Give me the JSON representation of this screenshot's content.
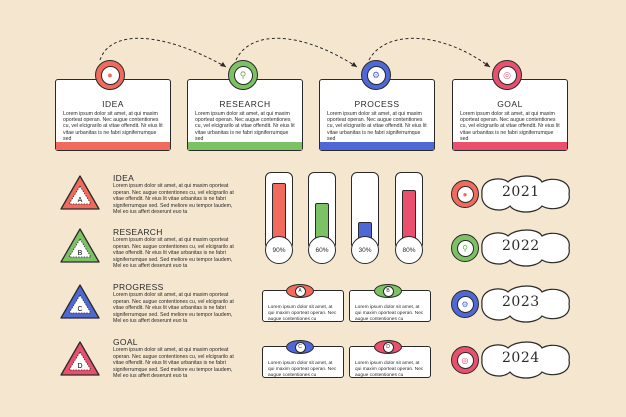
{
  "colors": {
    "red": "#f06a5e",
    "green": "#7cc265",
    "blue": "#4f68d6",
    "pink": "#e9506d",
    "bg": "#f5e6cf"
  },
  "lorem_card": "Lorem ipsum dolor sit amet, at qui maxim oporteat operan. Nec augue contentiones cu, vel elcigrarilo at vitae offendit. Nr eius lit vitae urbanitas is ne fabri signiferrumque sed",
  "top_cards": [
    {
      "title": "IDEA",
      "icon": "lightbulb-icon"
    },
    {
      "title": "RESEARCH",
      "icon": "magnifier-icon"
    },
    {
      "title": "PROCESS",
      "icon": "gear-icon"
    },
    {
      "title": "GOAL",
      "icon": "target-icon"
    }
  ],
  "lorem_list": "Lorem ipsum dolor sit amet, at qui maxim oporteat operan. Nec augue contentiones cu, vel elcigrarilo at vitae offendit. Nr eius lit vitae urbanitas is ne fabri signiferrumque sed. Sed meliore eu tempor laudem, Mel eo ius affert deserunt euo ta",
  "list_items": [
    {
      "letter": "A",
      "title": "IDEA"
    },
    {
      "letter": "B",
      "title": "RESEARCH"
    },
    {
      "letter": "C",
      "title": "PROGRESS"
    },
    {
      "letter": "D",
      "title": "GOAL"
    }
  ],
  "bars": [
    {
      "value": 90,
      "label": "90%"
    },
    {
      "value": 60,
      "label": "60%"
    },
    {
      "value": 30,
      "label": "30%"
    },
    {
      "value": 80,
      "label": "80%"
    }
  ],
  "lorem_small": "Lorem ipsum dolor sit amet, at qui maxim oporteat operan. Nec augue contentiones cu",
  "small_boxes": [
    {
      "letter": "A"
    },
    {
      "letter": "B"
    },
    {
      "letter": "C"
    },
    {
      "letter": "D"
    }
  ],
  "years": [
    {
      "year": "2021",
      "icon": "lightbulb-icon"
    },
    {
      "year": "2022",
      "icon": "magnifier-icon"
    },
    {
      "year": "2023",
      "icon": "gear-icon"
    },
    {
      "year": "2024",
      "icon": "target-icon"
    }
  ]
}
